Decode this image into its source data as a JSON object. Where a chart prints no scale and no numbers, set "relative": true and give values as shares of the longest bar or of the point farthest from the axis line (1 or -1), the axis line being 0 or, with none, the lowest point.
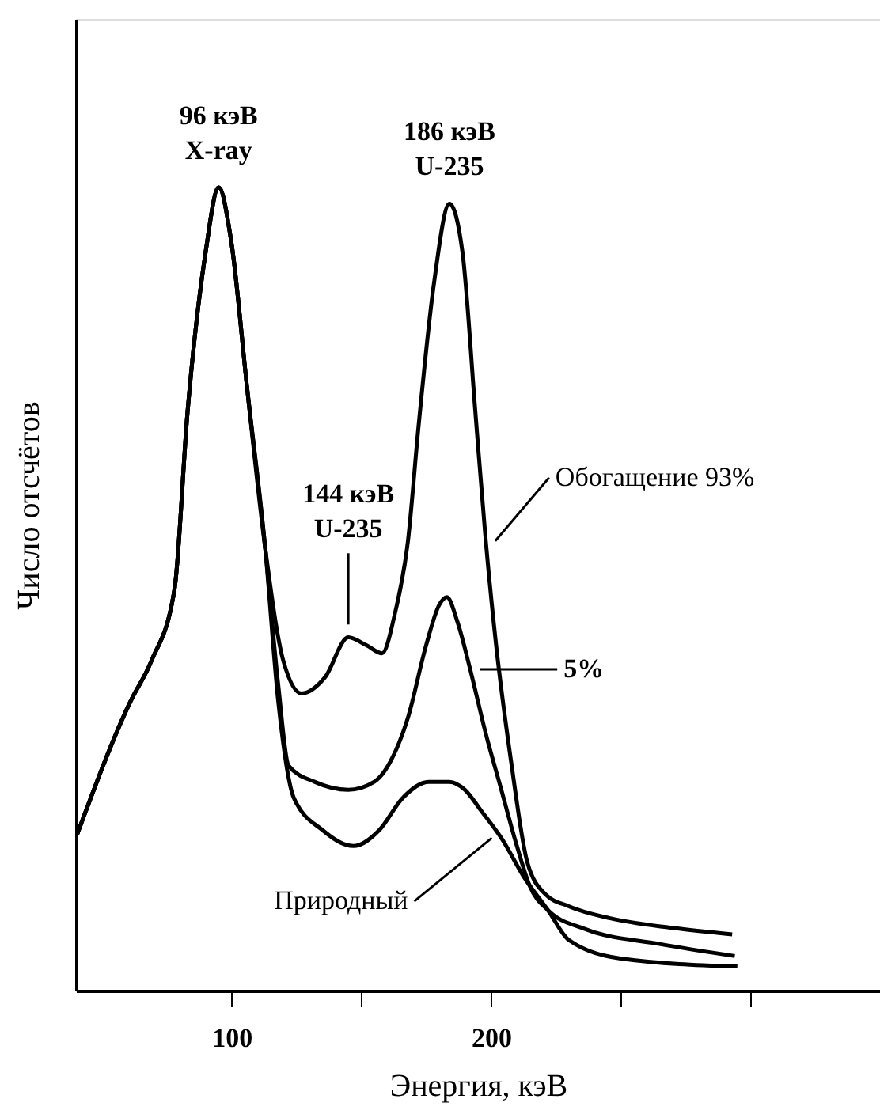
{
  "chart_data": {
    "type": "line",
    "relative": true,
    "xlabel": "Энергия, кэВ",
    "ylabel": "Число отсчётов",
    "xlim": [
      40,
      350
    ],
    "xticks": [
      100,
      {
        "value": 150,
        "label": null
      },
      200,
      {
        "value": 250,
        "label": null
      },
      {
        "value": 300,
        "label": null
      }
    ],
    "grid": false,
    "marker": "none",
    "line_style": "solid",
    "series": [
      {
        "name": "Обогащение 93%",
        "color": "#000000",
        "x": [
          40.5,
          61,
          69,
          78,
          83,
          90,
          95,
          100,
          106,
          113,
          120,
          127,
          136,
          145,
          152,
          158,
          163,
          168,
          172,
          178,
          184,
          189,
          194,
          198,
          202,
          208,
          214,
          221,
          230,
          246,
          270,
          293
        ],
        "values": [
          0.195,
          0.36,
          0.41,
          0.5,
          0.72,
          0.92,
          1.0,
          0.93,
          0.75,
          0.55,
          0.41,
          0.37,
          0.39,
          0.44,
          0.43,
          0.42,
          0.47,
          0.56,
          0.7,
          0.88,
          0.98,
          0.92,
          0.72,
          0.56,
          0.43,
          0.28,
          0.16,
          0.12,
          0.105,
          0.09,
          0.078,
          0.07
        ]
      },
      {
        "name": "5%",
        "color": "#000000",
        "x": [
          40.5,
          61,
          69,
          78,
          83,
          90,
          95,
          100,
          106,
          113,
          118,
          122,
          132,
          145,
          155,
          162,
          168,
          175,
          180,
          183,
          187,
          192,
          198,
          204,
          210,
          215,
          222,
          236,
          265,
          294
        ],
        "values": [
          0.195,
          0.36,
          0.41,
          0.5,
          0.72,
          0.92,
          1.0,
          0.93,
          0.75,
          0.55,
          0.38,
          0.28,
          0.26,
          0.25,
          0.26,
          0.29,
          0.34,
          0.43,
          0.48,
          0.49,
          0.46,
          0.4,
          0.32,
          0.25,
          0.18,
          0.13,
          0.1,
          0.077,
          0.058,
          0.043
        ]
      },
      {
        "name": "Природный",
        "color": "#000000",
        "x": [
          40.5,
          61,
          69,
          78,
          83,
          90,
          95,
          100,
          106,
          113,
          118,
          124,
          135,
          147,
          157,
          166,
          176,
          184,
          190,
          196,
          204,
          213,
          222,
          230,
          250,
          295
        ],
        "values": [
          0.195,
          0.36,
          0.41,
          0.5,
          0.72,
          0.92,
          1.0,
          0.93,
          0.75,
          0.55,
          0.36,
          0.24,
          0.2,
          0.18,
          0.2,
          0.24,
          0.26,
          0.26,
          0.25,
          0.225,
          0.19,
          0.14,
          0.1,
          0.063,
          0.04,
          0.03
        ]
      }
    ],
    "annotations": [
      {
        "text": "96 кэВ\nX-ray",
        "x": 95,
        "y": 1.0
      },
      {
        "text": "186 кэВ\nU-235",
        "x": 184,
        "y": 0.98
      },
      {
        "text": "144 кэВ\nU-235",
        "x": 145,
        "y": 0.45
      }
    ]
  }
}
